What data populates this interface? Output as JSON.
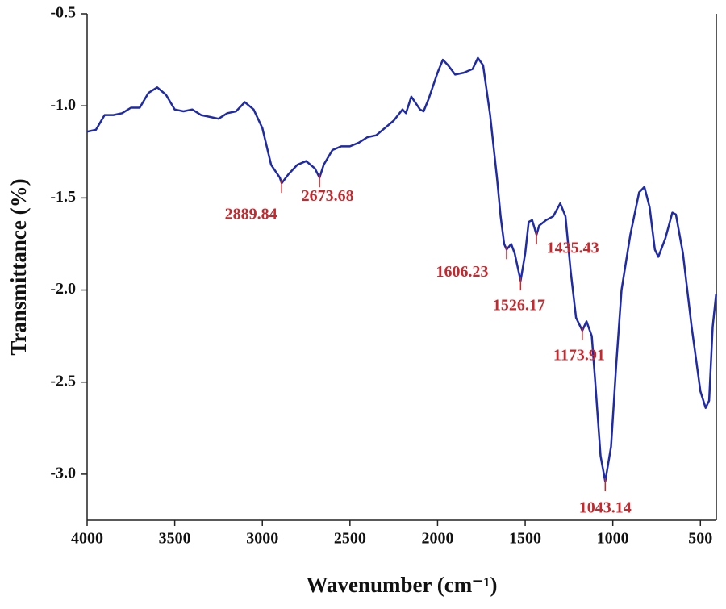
{
  "chart_data": {
    "type": "line",
    "xlabel": "Wavenumber (cm⁻¹)",
    "ylabel": "Transmittance (%)",
    "x": [
      4000,
      3950,
      3900,
      3850,
      3800,
      3750,
      3700,
      3650,
      3600,
      3550,
      3500,
      3450,
      3400,
      3350,
      3300,
      3250,
      3200,
      3150,
      3100,
      3050,
      3000,
      2950,
      2900,
      2889.84,
      2850,
      2800,
      2750,
      2700,
      2673.68,
      2650,
      2600,
      2550,
      2500,
      2450,
      2400,
      2350,
      2300,
      2250,
      2200,
      2180,
      2150,
      2100,
      2080,
      2050,
      2000,
      1970,
      1940,
      1900,
      1850,
      1800,
      1770,
      1740,
      1700,
      1660,
      1640,
      1620,
      1606.23,
      1580,
      1560,
      1526.17,
      1500,
      1480,
      1460,
      1435.43,
      1420,
      1380,
      1340,
      1300,
      1270,
      1240,
      1210,
      1173.91,
      1150,
      1120,
      1100,
      1070,
      1043.14,
      1010,
      980,
      950,
      900,
      850,
      820,
      790,
      760,
      740,
      700,
      660,
      640,
      600,
      550,
      500,
      470,
      450,
      430,
      410
    ],
    "values": [
      -1.14,
      -1.13,
      -1.05,
      -1.05,
      -1.04,
      -1.01,
      -1.01,
      -0.93,
      -0.9,
      -0.94,
      -1.02,
      -1.03,
      -1.02,
      -1.05,
      -1.06,
      -1.07,
      -1.04,
      -1.03,
      -0.98,
      -1.02,
      -1.12,
      -1.32,
      -1.39,
      -1.42,
      -1.37,
      -1.32,
      -1.3,
      -1.34,
      -1.39,
      -1.32,
      -1.24,
      -1.22,
      -1.22,
      -1.2,
      -1.17,
      -1.16,
      -1.12,
      -1.08,
      -1.02,
      -1.04,
      -0.95,
      -1.02,
      -1.03,
      -0.96,
      -0.82,
      -0.75,
      -0.78,
      -0.83,
      -0.82,
      -0.8,
      -0.74,
      -0.78,
      -1.05,
      -1.4,
      -1.6,
      -1.75,
      -1.78,
      -1.75,
      -1.8,
      -1.95,
      -1.8,
      -1.63,
      -1.62,
      -1.7,
      -1.65,
      -1.62,
      -1.6,
      -1.53,
      -1.6,
      -1.9,
      -2.15,
      -2.22,
      -2.17,
      -2.25,
      -2.5,
      -2.9,
      -3.04,
      -2.85,
      -2.4,
      -2.0,
      -1.7,
      -1.47,
      -1.44,
      -1.55,
      -1.78,
      -1.82,
      -1.72,
      -1.58,
      -1.59,
      -1.8,
      -2.2,
      -2.55,
      -2.64,
      -2.6,
      -2.2,
      -2.02
    ],
    "color": "#1f2ba6",
    "peaks": [
      2889.84,
      2673.68,
      1606.23,
      1526.17,
      1435.43,
      1173.91,
      1043.14
    ],
    "peak_color": "#c8282d",
    "xlim": [
      4000,
      400
    ],
    "xticks": [
      4000,
      3500,
      3000,
      2500,
      2000,
      1500,
      1000,
      500
    ],
    "ylim": [
      -3.25,
      -0.5
    ],
    "yticks": [
      -0.5,
      {
        "value": -1,
        "label": "-1.0"
      },
      -1.5,
      {
        "value": -2,
        "label": "-2.0"
      },
      -2.5,
      {
        "value": -3,
        "label": "-3.0"
      }
    ]
  }
}
